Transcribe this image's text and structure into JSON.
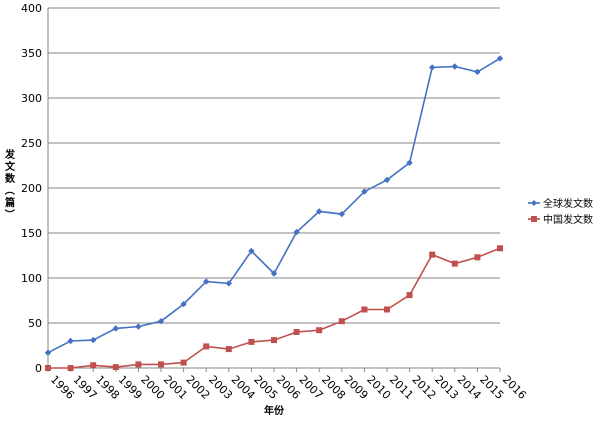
{
  "chart_data": {
    "type": "line",
    "xlabel": "年份",
    "ylabel": "发文数（篇）",
    "ylim": [
      0,
      400
    ],
    "yticks": [
      0,
      50,
      100,
      150,
      200,
      250,
      300,
      350,
      400
    ],
    "grid": true,
    "legend_position": "right",
    "categories": [
      "1996",
      "1997",
      "1998",
      "1999",
      "2000",
      "2001",
      "2002",
      "2003",
      "2004",
      "2005",
      "2006",
      "2007",
      "2008",
      "2009",
      "2010",
      "2011",
      "2012",
      "2013",
      "2014",
      "2015",
      "2016"
    ],
    "series": [
      {
        "name": "全球发文数",
        "color": "#4472C4",
        "marker": "diamond",
        "values": [
          17,
          30,
          31,
          44,
          46,
          52,
          71,
          96,
          94,
          130,
          105,
          151,
          174,
          171,
          196,
          209,
          228,
          334,
          335,
          329,
          344
        ]
      },
      {
        "name": "中国发文数",
        "color": "#C0504D",
        "marker": "square",
        "values": [
          0,
          0,
          3,
          1,
          4,
          4,
          6,
          24,
          21,
          29,
          31,
          40,
          42,
          52,
          65,
          65,
          81,
          126,
          116,
          123,
          133
        ]
      }
    ]
  }
}
